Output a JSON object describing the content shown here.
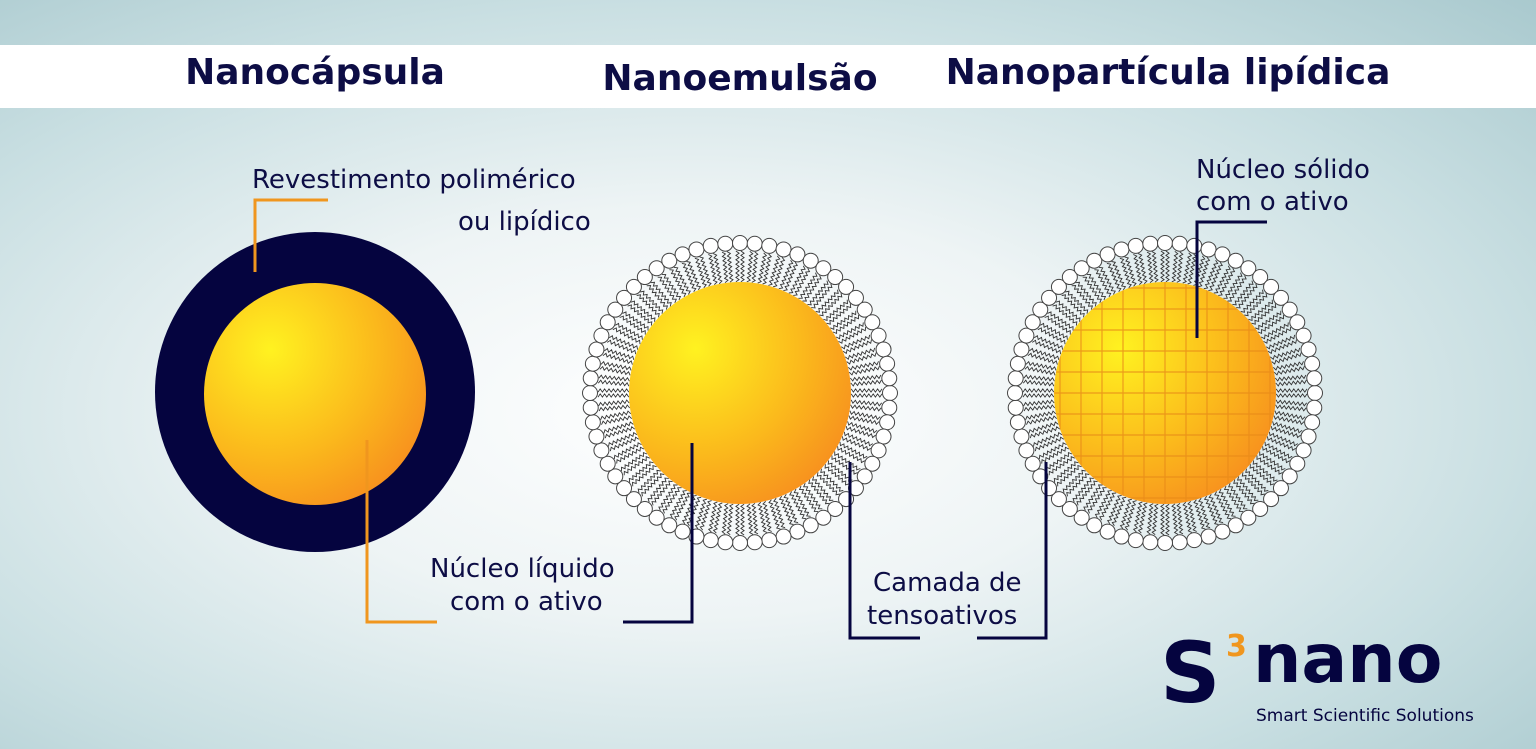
{
  "titles": [
    "Nanocápsula",
    "Nanoemulsão",
    "Nanopartícula lipídica"
  ],
  "labels": {
    "coating_line1": "Revestimento polimérico",
    "coating_line2": "ou lipídico",
    "liquid_core_line1": "Núcleo líquido",
    "liquid_core_line2": "com o ativo",
    "surfactant_line1": "Camada de",
    "surfactant_line2": "tensoativos",
    "solid_core_line1": "Núcleo sólido",
    "solid_core_line2": "com o ativo"
  },
  "logo": {
    "mark": "S",
    "superscript": "3",
    "name": "nano",
    "tagline": "Smart Scientific Solutions"
  },
  "colors": {
    "navy": "#05043f",
    "orange": "#f0961e",
    "core_light": "#fff220",
    "core_dark": "#f7901e"
  }
}
